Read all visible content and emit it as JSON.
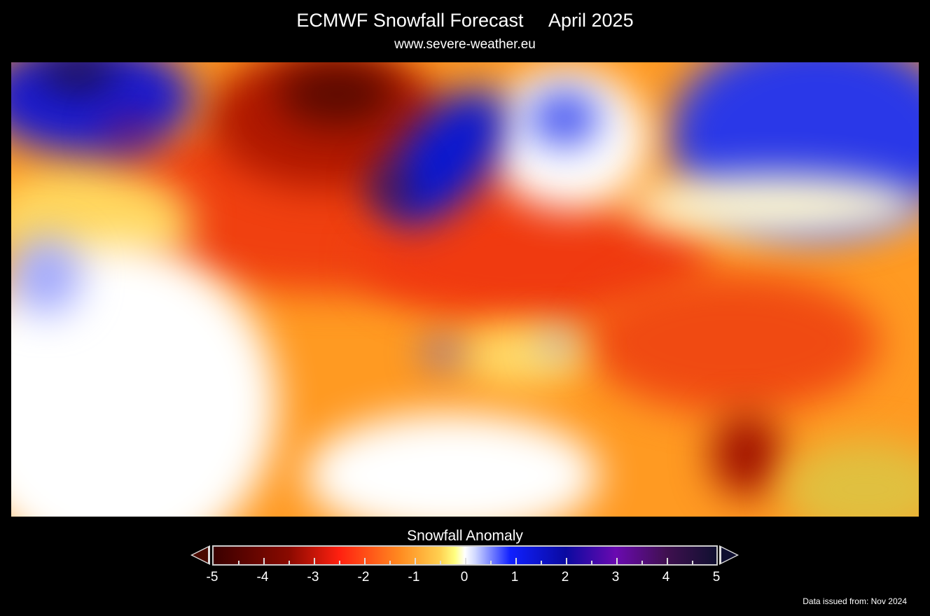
{
  "header": {
    "title": "ECMWF Snowfall Forecast",
    "period": "April 2025",
    "subtitle": "www.severe-weather.eu"
  },
  "colorbar": {
    "title": "Snowfall Anomaly",
    "labels": [
      "-5",
      "-4",
      "-3",
      "-2",
      "-1",
      "0",
      "1",
      "2",
      "3",
      "4",
      "5"
    ],
    "range": [
      -5,
      5
    ],
    "colors": {
      "min": "#3a0000",
      "neg": "#ff2010",
      "zero": "#ffffff",
      "pos": "#1020ff",
      "max": "#101030"
    }
  },
  "footer": {
    "issued": "Data issued from: Nov 2024"
  }
}
